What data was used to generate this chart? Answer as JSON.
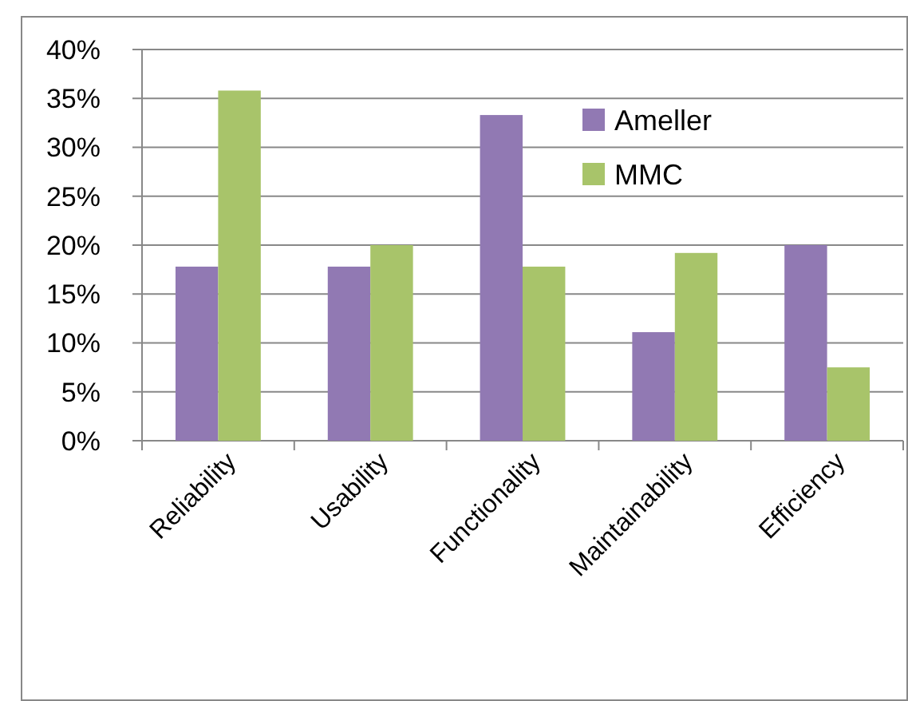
{
  "chart_data": {
    "type": "bar",
    "categories": [
      "Reliability",
      "Usability",
      "Functionality",
      "Maintainability",
      "Efficiency"
    ],
    "series": [
      {
        "name": "Ameller",
        "color": "#9179b3",
        "values": [
          17.8,
          17.8,
          33.3,
          11.1,
          20
        ]
      },
      {
        "name": "MMC",
        "color": "#a8c46a",
        "values": [
          35.8,
          20,
          17.8,
          19.2,
          7.5
        ]
      }
    ],
    "ylim": [
      0,
      40
    ],
    "yticks": [
      {
        "value": 0,
        "label": "0%"
      },
      {
        "value": 5,
        "label": "5%"
      },
      {
        "value": 10,
        "label": "10%"
      },
      {
        "value": 15,
        "label": "15%"
      },
      {
        "value": 20,
        "label": "20%"
      },
      {
        "value": 25,
        "label": "25%"
      },
      {
        "value": 30,
        "label": "30%"
      },
      {
        "value": 35,
        "label": "35%"
      },
      {
        "value": 40,
        "label": "40%"
      }
    ],
    "grid": "y",
    "legend": "top right"
  }
}
